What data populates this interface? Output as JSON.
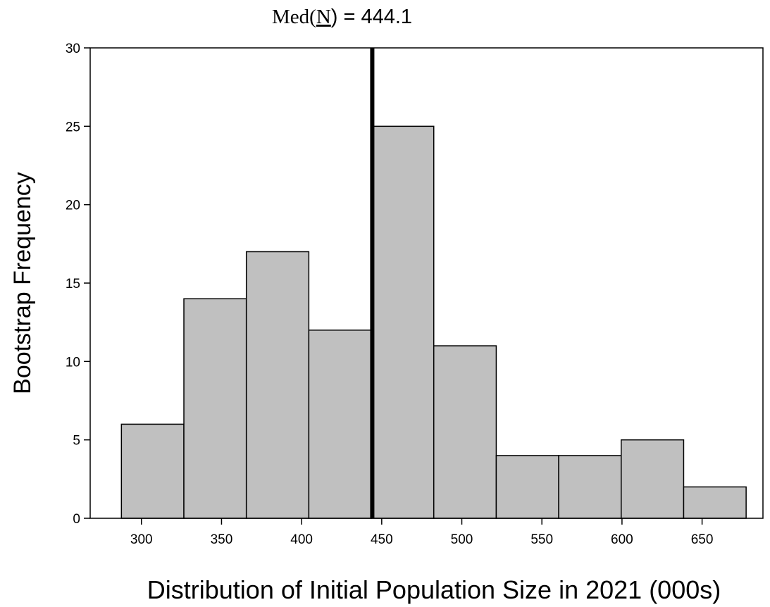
{
  "chart_data": {
    "type": "bar",
    "title_prefix": "Med(",
    "title_symbol": "N",
    "title_suffix": ") = 444.1",
    "xlabel": "Distribution of Initial Population Size in 2021 (000s)",
    "ylabel": "Bootstrap Frequency",
    "xlim": [
      268,
      688
    ],
    "ylim": [
      0,
      30
    ],
    "x_ticks": [
      300,
      350,
      400,
      450,
      500,
      550,
      600,
      650
    ],
    "y_ticks": [
      0,
      5,
      10,
      15,
      20,
      25,
      30
    ],
    "bins": [
      {
        "start": 287.5,
        "end": 326.5,
        "count": 6
      },
      {
        "start": 326.5,
        "end": 365.5,
        "count": 14
      },
      {
        "start": 365.5,
        "end": 404.5,
        "count": 17
      },
      {
        "start": 404.5,
        "end": 443.5,
        "count": 12
      },
      {
        "start": 443.5,
        "end": 482.5,
        "count": 25
      },
      {
        "start": 482.5,
        "end": 521.5,
        "count": 11
      },
      {
        "start": 521.5,
        "end": 560.5,
        "count": 4
      },
      {
        "start": 560.5,
        "end": 599.5,
        "count": 4
      },
      {
        "start": 599.5,
        "end": 638.5,
        "count": 5
      },
      {
        "start": 638.5,
        "end": 677.5,
        "count": 2
      }
    ],
    "median": 444.1,
    "bar_fill": "#c0c0c0",
    "bar_stroke": "#000000",
    "median_line_color": "#000000",
    "grid": false,
    "legend": "none"
  }
}
